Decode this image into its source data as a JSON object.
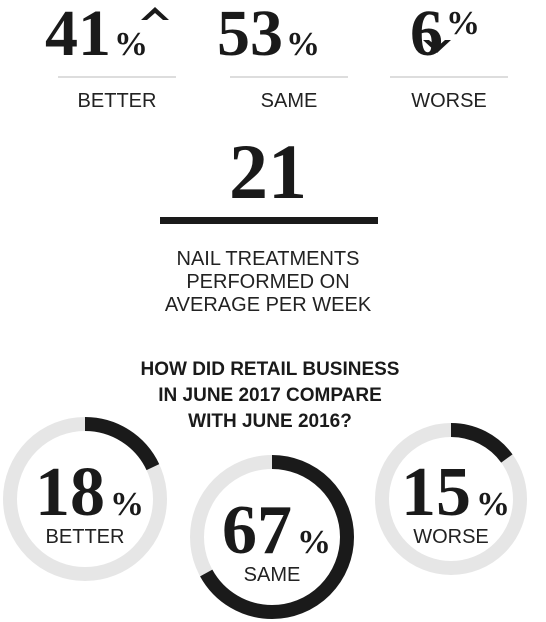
{
  "top_stats": [
    {
      "value": 41,
      "label": "BETTER"
    },
    {
      "value": 53,
      "label": "SAME"
    },
    {
      "value": 6,
      "label": "WORSE"
    }
  ],
  "unit": "%",
  "nail": {
    "value": 21,
    "label_lines": [
      "NAIL TREATMENTS",
      "PERFORMED ON",
      "AVERAGE PER WEEK"
    ]
  },
  "retail": {
    "question_lines": [
      "HOW DID RETAIL BUSINESS",
      "IN JUNE 2017 COMPARE",
      "WITH JUNE 2016?"
    ],
    "items": [
      {
        "value": 18,
        "label": "BETTER"
      },
      {
        "value": 67,
        "label": "SAME"
      },
      {
        "value": 15,
        "label": "WORSE"
      }
    ]
  }
}
